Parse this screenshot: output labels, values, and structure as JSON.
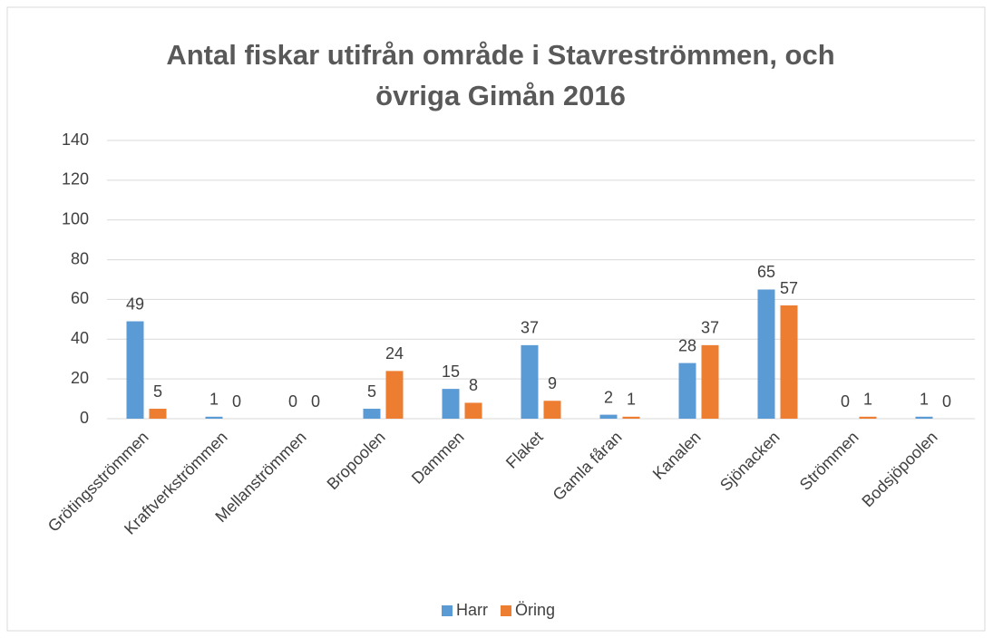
{
  "chart_data": {
    "type": "bar",
    "title": "Antal fiskar utifrån område i Stavreströmmen, och övriga Gimån 2016",
    "categories": [
      "Grötingsströmmen",
      "Kraftverkströmmen",
      "Mellanströmmen",
      "Bropoolen",
      "Dammen",
      "Flaket",
      "Gamla fåran",
      "Kanalen",
      "Sjönacken",
      "Strömmen",
      "Bodsjöpoolen"
    ],
    "series": [
      {
        "name": "Harr",
        "color": "#5b9bd5",
        "values": [
          49,
          1,
          0,
          5,
          15,
          37,
          2,
          28,
          65,
          0,
          1
        ]
      },
      {
        "name": "Öring",
        "color": "#ed7d31",
        "values": [
          5,
          0,
          0,
          24,
          8,
          9,
          1,
          37,
          57,
          1,
          0
        ]
      }
    ],
    "ylim": [
      0,
      140
    ],
    "yticks": [
      0,
      20,
      40,
      60,
      80,
      100,
      120,
      140
    ],
    "grid": true,
    "legend": "bottom"
  }
}
